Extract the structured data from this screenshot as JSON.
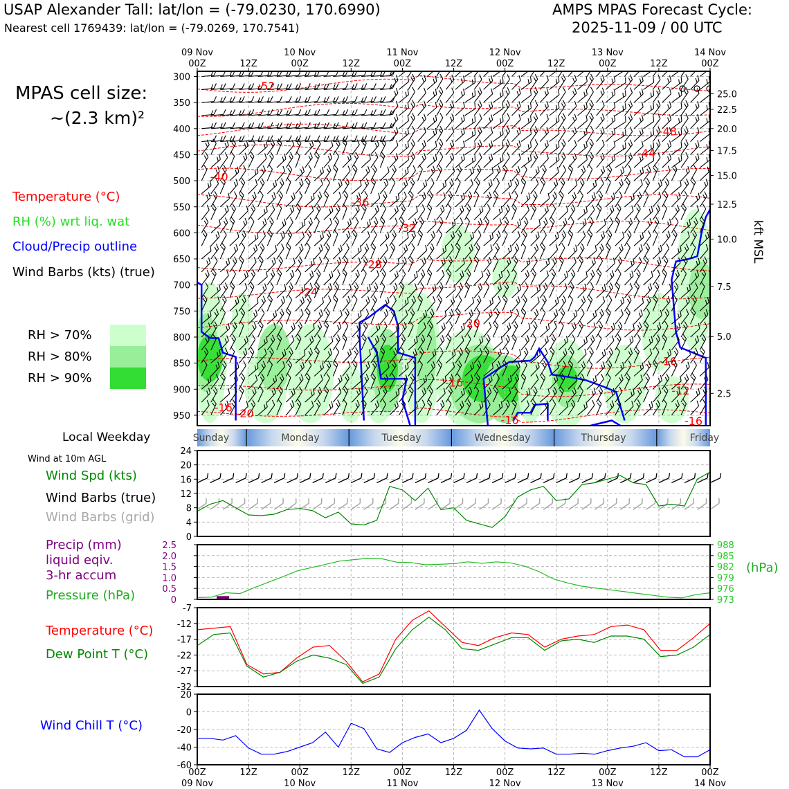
{
  "header": {
    "title_left": "USAP Alexander Tall: lat/lon = (-79.0230, 170.6990)",
    "subtitle_left": "Nearest cell 1769439: lat/lon = (-79.0269, 170.7541)",
    "title_right_1": "AMPS MPAS Forecast Cycle:",
    "title_right_2": "2025-11-09 / 00 UTC"
  },
  "left_legend": {
    "cell_size_1": "MPAS cell size:",
    "cell_size_2": "~(2.3 km)²",
    "temperature": "Temperature (°C)",
    "rh": "RH (%) wrt liq. wat",
    "cloud": "Cloud/Precip outline",
    "wind": "Wind Barbs (kts) (true)",
    "rh_levels": [
      "RH > 70%",
      "RH > 80%",
      "RH > 90%"
    ],
    "weekday_label": "Local Weekday",
    "wind10m": "Wind at 10m AGL",
    "wind_spd": "Wind Spd (kts)",
    "wind_barbs_true": "Wind Barbs (true)",
    "wind_barbs_grid": "Wind Barbs (grid)",
    "precip_1": "Precip (mm)",
    "precip_2": "liquid eqiv.",
    "precip_3": "3-hr accum",
    "pressure": "Pressure (hPa)",
    "temp2": "Temperature (°C)",
    "dew": "Dew Point T (°C)",
    "chill": "Wind Chill T (°C)"
  },
  "colors": {
    "red": "#ff0000",
    "green_label": "#22dd22",
    "dark_green": "#008800",
    "blue": "#0000ff",
    "gray": "#a8a8a8",
    "purple": "#800080",
    "rh70": "#ccffcc",
    "rh80": "#99ee99",
    "rh90": "#33dd33"
  },
  "chart_data": [
    {
      "type": "heatmap",
      "title": "Time-height cross section",
      "x_time_ticks": [
        {
          "day": "09 Nov",
          "hour": "00Z"
        },
        {
          "day": "",
          "hour": "12Z"
        },
        {
          "day": "10 Nov",
          "hour": "00Z"
        },
        {
          "day": "",
          "hour": "12Z"
        },
        {
          "day": "11 Nov",
          "hour": "00Z"
        },
        {
          "day": "",
          "hour": "12Z"
        },
        {
          "day": "12 Nov",
          "hour": "00Z"
        },
        {
          "day": "",
          "hour": "12Z"
        },
        {
          "day": "13 Nov",
          "hour": "00Z"
        },
        {
          "day": "",
          "hour": "12Z"
        },
        {
          "day": "14 Nov",
          "hour": "00Z"
        }
      ],
      "xlim_hours": [
        0,
        120
      ],
      "pressure_levels": [
        "300",
        "350",
        "400",
        "450",
        "500",
        "550",
        "600",
        "650",
        "700",
        "750",
        "800",
        "850",
        "900",
        "950"
      ],
      "ylim_hpa": [
        290,
        970
      ],
      "kft_ticks": [
        "25.0",
        "22.5",
        "20.0",
        "17.5",
        "15.0",
        "12.5",
        "10.0",
        "7.5",
        "5.0",
        "2.5"
      ],
      "kft_label": "kft MSL",
      "temperature_labels": [
        {
          "t": 14,
          "p": 318,
          "v": "-52"
        },
        {
          "t": 108,
          "p": 405,
          "v": "-48"
        },
        {
          "t": 103,
          "p": 447,
          "v": "-44"
        },
        {
          "t": 3,
          "p": 492,
          "v": "-40"
        },
        {
          "t": 36,
          "p": 541,
          "v": "-36"
        },
        {
          "t": 47,
          "p": 590,
          "v": "-32"
        },
        {
          "t": 39,
          "p": 660,
          "v": "-28"
        },
        {
          "t": 24,
          "p": 713,
          "v": "-24"
        },
        {
          "t": 62,
          "p": 773,
          "v": "-20"
        },
        {
          "t": 108,
          "p": 846,
          "v": "-16"
        },
        {
          "t": 58,
          "p": 887,
          "v": "-16"
        },
        {
          "t": 71,
          "p": 959,
          "v": "-16"
        },
        {
          "t": 4,
          "p": 935,
          "v": "-16"
        },
        {
          "t": 9,
          "p": 946,
          "v": "-20"
        },
        {
          "t": 111,
          "p": 902,
          "v": "-12"
        },
        {
          "t": 114,
          "p": 961,
          "v": "-16"
        }
      ]
    },
    {
      "type": "line",
      "title": "Wind Spd (kts)",
      "x": [
        0,
        3,
        6,
        9,
        12,
        15,
        18,
        21,
        24,
        27,
        30,
        33,
        36,
        39,
        42,
        45,
        48,
        51,
        54,
        57,
        60,
        63,
        66,
        69,
        72,
        75,
        78,
        81,
        84,
        87,
        90,
        93,
        96,
        99,
        102,
        105,
        108,
        111,
        114,
        117,
        120
      ],
      "series": [
        {
          "name": "Wind Spd (kts)",
          "values": [
            7,
            9,
            10,
            8,
            6,
            5.8,
            6.2,
            7.5,
            7.8,
            7.2,
            5.2,
            6.8,
            3.5,
            3.2,
            4.5,
            14,
            13,
            10,
            13.5,
            7.5,
            8,
            4.5,
            3.5,
            2.5,
            5.5,
            11,
            13,
            14,
            10,
            10.5,
            14.5,
            15,
            16,
            17,
            15,
            14.5,
            8.5,
            9,
            8.5,
            16,
            18
          ]
        }
      ],
      "ylim": [
        0,
        24
      ],
      "yticks": [
        "0",
        "4",
        "8",
        "12",
        "16",
        "20",
        "24"
      ]
    },
    {
      "type": "line",
      "title": "Precip / Pressure",
      "series": [
        {
          "name": "Pressure (hPa)",
          "values": [
            973.5,
            973.6,
            974.8,
            974.6,
            976.2,
            977.7,
            979.2,
            980.8,
            981.7,
            982.6,
            983.5,
            983.9,
            984.3,
            984.1,
            983.2,
            983.1,
            982.5,
            982.6,
            982.8,
            983.3,
            982.9,
            983.3,
            983,
            982.1,
            980.6,
            978.6,
            977.5,
            976.6,
            976.1,
            975.6,
            975.1,
            974.6,
            974.1,
            973.6,
            973.4,
            974.3,
            974.8
          ]
        },
        {
          "name": "Precip (mm)",
          "values": [
            0.15
          ]
        }
      ],
      "precip_bar_hour": 6,
      "precip_ylim": [
        0,
        2.5
      ],
      "precip_ticks": [
        "0",
        "0.5",
        "1.0",
        "1.5",
        "2.0",
        "2.5"
      ],
      "pressure_ylim": [
        973,
        988
      ],
      "pressure_ticks": [
        "973",
        "976",
        "979",
        "982",
        "985",
        "988"
      ],
      "pressure_unit": "(hPa)"
    },
    {
      "type": "line",
      "title": "Temperature / Dew Point",
      "series": [
        {
          "name": "Temperature (°C)",
          "values": [
            -14,
            -13.5,
            -13,
            -25,
            -28,
            -27.5,
            -23,
            -19.5,
            -19,
            -24,
            -30.5,
            -28,
            -17,
            -11,
            -8,
            -13,
            -18,
            -19,
            -16.5,
            -15,
            -15.5,
            -19.5,
            -17,
            -16,
            -15.5,
            -13,
            -12.5,
            -14,
            -20.5,
            -20.5,
            -16.5,
            -12
          ]
        },
        {
          "name": "Dew Point T (°C)",
          "values": [
            -19,
            -15.5,
            -15,
            -25.5,
            -29,
            -27.5,
            -24,
            -22,
            -23,
            -25,
            -31,
            -29,
            -20,
            -14,
            -10,
            -14,
            -20,
            -20.5,
            -18.5,
            -16.5,
            -16.5,
            -20.5,
            -17.5,
            -17,
            -18,
            -16,
            -16,
            -17,
            -22.5,
            -22,
            -19.5,
            -15.5
          ]
        }
      ],
      "ylim": [
        -32,
        -7
      ],
      "yticks": [
        "-7",
        "-12",
        "-17",
        "-22",
        "-27",
        "-32"
      ]
    },
    {
      "type": "line",
      "title": "Wind Chill T (°C)",
      "series": [
        {
          "name": "Wind Chill T (°C)",
          "values": [
            -30,
            -30,
            -32,
            -27,
            -41,
            -48,
            -48,
            -45,
            -40,
            -35,
            -23,
            -40,
            -13,
            -19,
            -42,
            -46,
            -35,
            -29,
            -25,
            -35,
            -30,
            -21,
            2,
            -19,
            -33,
            -41,
            -42,
            -41,
            -48,
            -48,
            -47,
            -48,
            -44,
            -41,
            -39,
            -35,
            -44,
            -43,
            -51,
            -51,
            -43
          ]
        }
      ],
      "ylim": [
        -60,
        20
      ],
      "yticks": [
        "-60",
        "-40",
        "-20",
        "0",
        "20"
      ]
    }
  ],
  "weekday_bar": [
    "Sunday",
    "Monday",
    "Tuesday",
    "Wednesday",
    "Thursday",
    "Friday"
  ],
  "bottom_axis_hours": [
    "00Z",
    "12Z",
    "00Z",
    "12Z",
    "00Z",
    "12Z",
    "00Z",
    "12Z",
    "00Z",
    "12Z",
    "00Z"
  ],
  "bottom_axis_days": [
    "09 Nov",
    "10 Nov",
    "11 Nov",
    "12 Nov",
    "13 Nov",
    "14 Nov"
  ]
}
